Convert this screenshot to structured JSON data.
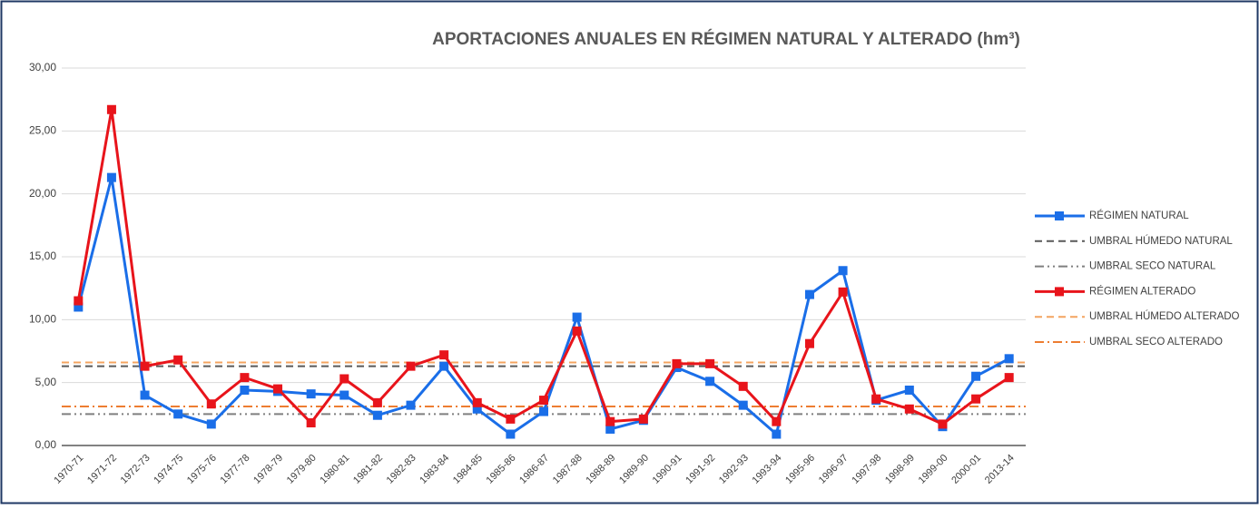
{
  "chart_data": {
    "type": "line",
    "title": "APORTACIONES ANUALES EN RÉGIMEN NATURAL Y ALTERADO (hm³)",
    "categories": [
      "1970-71",
      "1971-72",
      "1972-73",
      "1974-75",
      "1975-76",
      "1977-78",
      "1978-79",
      "1979-80",
      "1980-81",
      "1981-82",
      "1982-83",
      "1983-84",
      "1984-85",
      "1985-86",
      "1986-87",
      "1987-88",
      "1988-89",
      "1989-90",
      "1990-91",
      "1991-92",
      "1992-93",
      "1993-94",
      "1995-96",
      "1996-97",
      "1997-98",
      "1998-99",
      "1999-00",
      "2000-01",
      "2013-14"
    ],
    "series": [
      {
        "name": "RÉGIMEN NATURAL",
        "color": "#1a6ee8",
        "values": [
          11.0,
          21.3,
          4.0,
          2.5,
          1.7,
          4.4,
          4.3,
          4.1,
          4.0,
          2.4,
          3.2,
          6.3,
          2.9,
          0.9,
          2.7,
          10.2,
          1.3,
          2.0,
          6.2,
          5.1,
          3.2,
          0.9,
          12.0,
          13.9,
          3.6,
          4.4,
          1.5,
          5.5,
          6.9
        ]
      },
      {
        "name": "UMBRAL HÚMEDO NATURAL",
        "color": "#595959",
        "dash": "8 5",
        "value": 6.3
      },
      {
        "name": "UMBRAL SECO NATURAL",
        "color": "#7f7f7f",
        "dash": "10 4 2 4 2 4",
        "value": 2.5
      },
      {
        "name": "RÉGIMEN ALTERADO",
        "color": "#e8141b",
        "values": [
          11.5,
          26.7,
          6.3,
          6.8,
          3.3,
          5.4,
          4.5,
          1.8,
          5.3,
          3.4,
          6.3,
          7.2,
          3.4,
          2.1,
          3.6,
          9.1,
          1.9,
          2.1,
          6.5,
          6.5,
          4.7,
          1.9,
          8.1,
          12.2,
          3.7,
          2.9,
          1.7,
          3.7,
          5.4
        ]
      },
      {
        "name": "UMBRAL HÚMEDO ALTERADO",
        "color": "#f4a460",
        "dash": "8 5",
        "value": 6.6
      },
      {
        "name": "UMBRAL SECO ALTERADO",
        "color": "#ed7d31",
        "dash": "10 4 2 4",
        "value": 3.1
      }
    ],
    "ylim": [
      0,
      30
    ],
    "yticks": [
      {
        "value": 0,
        "label": "0,00"
      },
      {
        "value": 5,
        "label": "5,00"
      },
      {
        "value": 10,
        "label": "10,00"
      },
      {
        "value": 15,
        "label": "15,00"
      },
      {
        "value": 20,
        "label": "20,00"
      },
      {
        "value": 25,
        "label": "25,00"
      },
      {
        "value": 30,
        "label": "30,00"
      }
    ],
    "grid": true,
    "legend": "right"
  }
}
